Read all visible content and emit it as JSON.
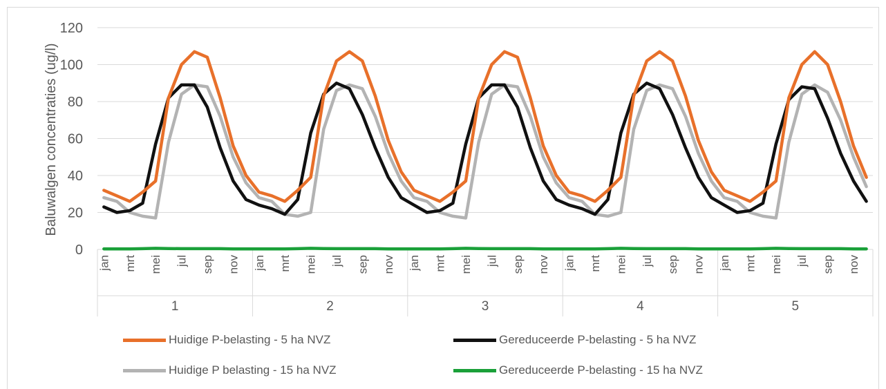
{
  "chart_data": {
    "type": "line",
    "ylabel": "Baluwalgen concentraties (ug/l)",
    "xlabel": "",
    "ylim": [
      0,
      120
    ],
    "yticks": [
      0,
      20,
      40,
      60,
      80,
      100,
      120
    ],
    "month_labels": [
      "jan",
      "",
      "mrt",
      "",
      "mei",
      "",
      "jul",
      "",
      "sep",
      "",
      "nov",
      ""
    ],
    "years": [
      "1",
      "2",
      "3",
      "4",
      "5"
    ],
    "grid": true,
    "legend_position": "bottom",
    "series": [
      {
        "name": "Huidige P-belasting - 5 ha NVZ",
        "color": "#e8702a",
        "values": [
          32,
          29,
          26,
          31,
          37,
          82,
          100,
          107,
          104,
          82,
          56,
          40,
          31,
          29,
          26,
          32,
          39,
          83,
          102,
          107,
          102,
          83,
          59,
          42,
          32,
          29,
          26,
          31,
          37,
          82,
          100,
          107,
          104,
          82,
          56,
          40,
          31,
          29,
          26,
          32,
          39,
          83,
          102,
          107,
          102,
          83,
          59,
          42,
          32,
          29,
          26,
          31,
          37,
          82,
          100,
          107,
          100,
          80,
          56,
          39
        ]
      },
      {
        "name": "Gereduceerde P-belasting - 5 ha NVZ",
        "color": "#111111",
        "values": [
          23,
          20,
          21,
          25,
          57,
          82,
          89,
          89,
          77,
          55,
          37,
          27,
          24,
          22,
          19,
          27,
          63,
          84,
          90,
          87,
          73,
          55,
          39,
          28,
          24,
          20,
          21,
          25,
          57,
          82,
          89,
          89,
          77,
          55,
          37,
          27,
          24,
          22,
          19,
          27,
          63,
          84,
          90,
          87,
          73,
          55,
          39,
          28,
          24,
          20,
          21,
          25,
          57,
          81,
          88,
          87,
          71,
          52,
          37,
          26
        ]
      },
      {
        "name": "Huidige P belasting - 15 ha NVZ",
        "color": "#b3b3b3",
        "values": [
          28,
          26,
          20,
          18,
          17,
          58,
          84,
          89,
          88,
          72,
          50,
          36,
          28,
          26,
          19,
          18,
          20,
          65,
          86,
          89,
          87,
          72,
          52,
          37,
          28,
          26,
          20,
          18,
          17,
          58,
          84,
          89,
          88,
          72,
          50,
          36,
          28,
          26,
          19,
          18,
          20,
          65,
          86,
          89,
          87,
          72,
          52,
          37,
          28,
          26,
          20,
          18,
          17,
          58,
          84,
          89,
          85,
          70,
          50,
          34
        ]
      },
      {
        "name": "Gereduceerde P-belasting - 15 ha NVZ",
        "color": "#1aa039",
        "values": [
          0.3,
          0.3,
          0.3,
          0.4,
          0.6,
          0.5,
          0.4,
          0.4,
          0.4,
          0.4,
          0.3,
          0.3,
          0.3,
          0.3,
          0.3,
          0.4,
          0.6,
          0.5,
          0.4,
          0.4,
          0.4,
          0.4,
          0.3,
          0.3,
          0.3,
          0.3,
          0.3,
          0.4,
          0.6,
          0.5,
          0.4,
          0.4,
          0.4,
          0.4,
          0.3,
          0.3,
          0.3,
          0.3,
          0.3,
          0.4,
          0.6,
          0.5,
          0.4,
          0.4,
          0.4,
          0.4,
          0.3,
          0.3,
          0.3,
          0.3,
          0.3,
          0.4,
          0.6,
          0.5,
          0.4,
          0.4,
          0.4,
          0.4,
          0.3,
          0.3
        ]
      }
    ]
  }
}
